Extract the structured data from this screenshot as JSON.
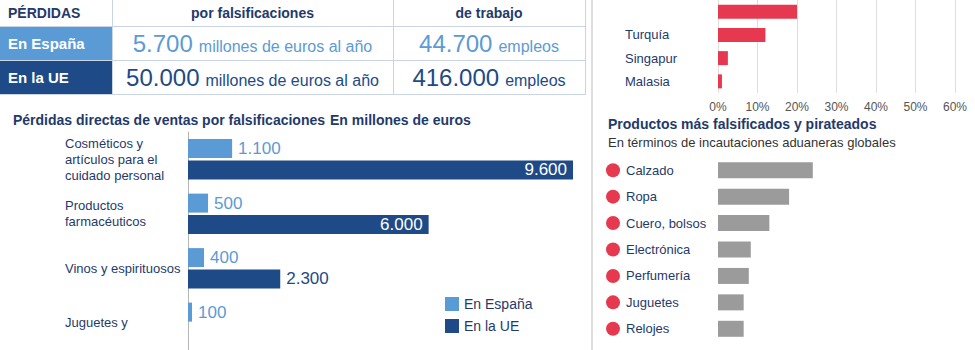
{
  "table": {
    "header": [
      "PÉRDIDAS",
      "por falsificaciones",
      "de trabajo"
    ],
    "rows": [
      {
        "label": "En España",
        "sales": [
          "5.700",
          "millones de euros al año"
        ],
        "jobs": [
          "44.700",
          "empleos"
        ],
        "color": "#5b9bd5"
      },
      {
        "label": "En la UE",
        "sales": [
          "50.000",
          "millones de euros al año"
        ],
        "jobs": [
          "416.000",
          "empleos"
        ],
        "color": "#1e4a87"
      }
    ]
  },
  "chart_data": [
    {
      "type": "bar",
      "orientation": "horizontal",
      "title": "Pérdidas directas de ventas por falsificaciones",
      "subtitle": "En millones de euros",
      "categories": [
        "Cosméticos y artículos para el cuidado personal",
        "Productos farmacéuticos",
        "Vinos y espirituosos",
        "Juguetes y"
      ],
      "series": [
        {
          "name": "En España",
          "color": "#5b9bd5",
          "values": [
            1100,
            500,
            400,
            100
          ],
          "value_labels": [
            "1.100",
            "500",
            "400",
            "100"
          ]
        },
        {
          "name": "En la UE",
          "color": "#1e4a87",
          "values": [
            9600,
            6000,
            2300,
            null
          ],
          "value_labels": [
            "9.600",
            "6.000",
            "2.300",
            null
          ]
        }
      ],
      "xlim": [
        0,
        9600
      ],
      "data_labels": true,
      "legend": "lower right",
      "tick_labels": "y",
      "grid": false
    },
    {
      "type": "bar",
      "orientation": "horizontal",
      "categories": [
        null,
        "Turquía",
        "Singapur",
        "Malasia"
      ],
      "values": [
        20,
        12,
        2.5,
        1
      ],
      "color": "#e6394f",
      "xlim": [
        0,
        60
      ],
      "xticks": [
        {
          "value": 0,
          "label": "0%"
        },
        {
          "value": 10,
          "label": "10%"
        },
        {
          "value": 20,
          "label": "20%"
        },
        {
          "value": 30,
          "label": "30%"
        },
        {
          "value": 40,
          "label": "40%"
        },
        {
          "value": 50,
          "label": "50%"
        },
        {
          "value": 60,
          "label": "60%"
        }
      ],
      "grid": true
    },
    {
      "type": "bar",
      "orientation": "horizontal",
      "title": "Productos más falsificados y pirateados",
      "subtitle": "En términos de incautaciones aduaneras globales",
      "categories": [
        "Calzado",
        "Ropa",
        "Cuero, bolsos",
        "Electrónica",
        "Perfumería",
        "Juguetes",
        "Relojes"
      ],
      "values": [
        24,
        18,
        13,
        8.3,
        7.8,
        6.5,
        6.5
      ],
      "color": "#9b9b9b",
      "xlim": [
        0,
        60
      ],
      "tick_labels": "y",
      "grid": false
    }
  ]
}
